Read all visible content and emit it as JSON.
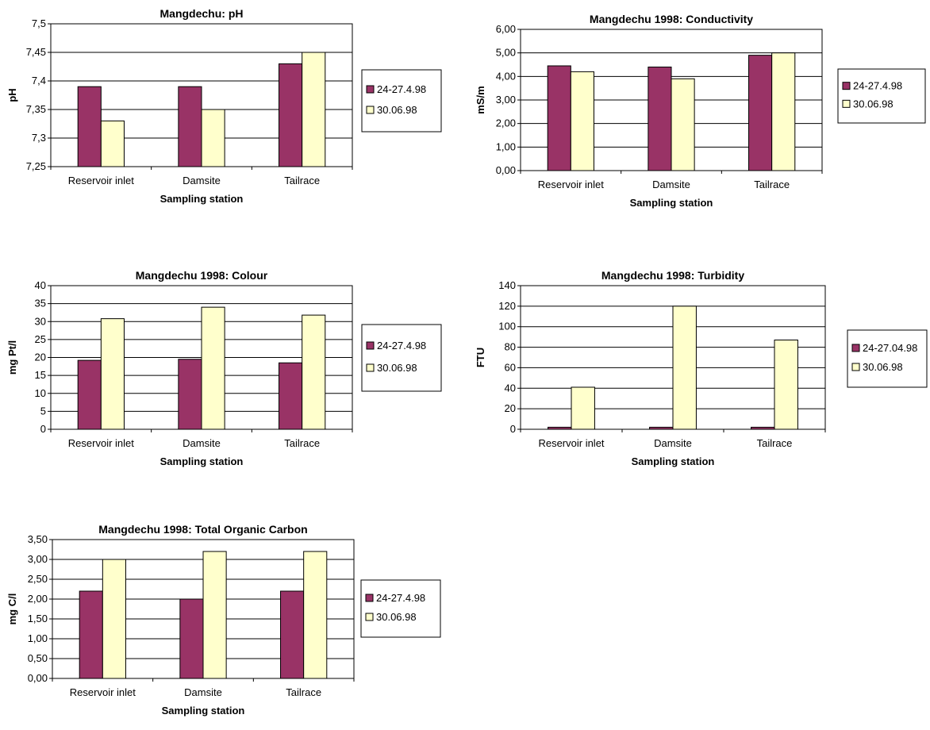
{
  "colors": {
    "series1": "#993366",
    "series2": "#ffffcc",
    "stroke": "#000000",
    "grid": "#000000"
  },
  "charts": [
    {
      "type": "bar",
      "title": "Mangdechu: pH",
      "xlabel": "Sampling station",
      "ylabel": "pH",
      "categories": [
        "Reservoir inlet",
        "Damsite",
        "Tailrace"
      ],
      "ylim": [
        7.25,
        7.5
      ],
      "yticks": [
        "7,25",
        "7,3",
        "7,35",
        "7,4",
        "7,45",
        "7,5"
      ],
      "grid": true,
      "legend": "right",
      "series": [
        {
          "name": "24-27.4.98",
          "values": [
            7.39,
            7.39,
            7.43
          ]
        },
        {
          "name": "30.06.98",
          "values": [
            7.33,
            7.35,
            7.45
          ]
        }
      ]
    },
    {
      "type": "bar",
      "title": "Mangdechu 1998: Conductivity",
      "xlabel": "Sampling station",
      "ylabel": "mS/m",
      "categories": [
        "Reservoir inlet",
        "Damsite",
        "Tailrace"
      ],
      "ylim": [
        0,
        6
      ],
      "yticks": [
        "0,00",
        "1,00",
        "2,00",
        "3,00",
        "4,00",
        "5,00",
        "6,00"
      ],
      "grid": true,
      "legend": "right",
      "series": [
        {
          "name": "24-27.4.98",
          "values": [
            4.45,
            4.4,
            4.9
          ]
        },
        {
          "name": "30.06.98",
          "values": [
            4.2,
            3.9,
            5.0
          ]
        }
      ]
    },
    {
      "type": "bar",
      "title": "Mangdechu 1998: Colour",
      "xlabel": "Sampling station",
      "ylabel": "mg Pt/l",
      "categories": [
        "Reservoir inlet",
        "Damsite",
        "Tailrace"
      ],
      "ylim": [
        0,
        40
      ],
      "yticks": [
        "0",
        "5",
        "10",
        "15",
        "20",
        "25",
        "30",
        "35",
        "40"
      ],
      "grid": true,
      "legend": "right",
      "series": [
        {
          "name": "24-27.4.98",
          "values": [
            19.2,
            19.5,
            18.5
          ]
        },
        {
          "name": "30.06.98",
          "values": [
            30.8,
            34,
            31.8
          ]
        }
      ]
    },
    {
      "type": "bar",
      "title": "Mangdechu 1998: Turbidity",
      "xlabel": "Sampling station",
      "ylabel": "FTU",
      "categories": [
        "Reservoir inlet",
        "Damsite",
        "Tailrace"
      ],
      "ylim": [
        0,
        140
      ],
      "yticks": [
        "0",
        "20",
        "40",
        "60",
        "80",
        "100",
        "120",
        "140"
      ],
      "grid": true,
      "legend": "right",
      "series": [
        {
          "name": "24-27.04.98",
          "values": [
            2,
            2,
            2
          ]
        },
        {
          "name": "30.06.98",
          "values": [
            41,
            120,
            87
          ]
        }
      ]
    },
    {
      "type": "bar",
      "title": "Mangdechu 1998: Total Organic Carbon",
      "xlabel": "Sampling station",
      "ylabel": "mg C/l",
      "categories": [
        "Reservoir inlet",
        "Damsite",
        "Tailrace"
      ],
      "ylim": [
        0,
        3.5
      ],
      "yticks": [
        "0,00",
        "0,50",
        "1,00",
        "1,50",
        "2,00",
        "2,50",
        "3,00",
        "3,50"
      ],
      "grid": true,
      "legend": "right",
      "series": [
        {
          "name": "24-27.4.98",
          "values": [
            2.2,
            2.0,
            2.2
          ]
        },
        {
          "name": "30.06.98",
          "values": [
            3.0,
            3.2,
            3.2
          ]
        }
      ]
    }
  ]
}
